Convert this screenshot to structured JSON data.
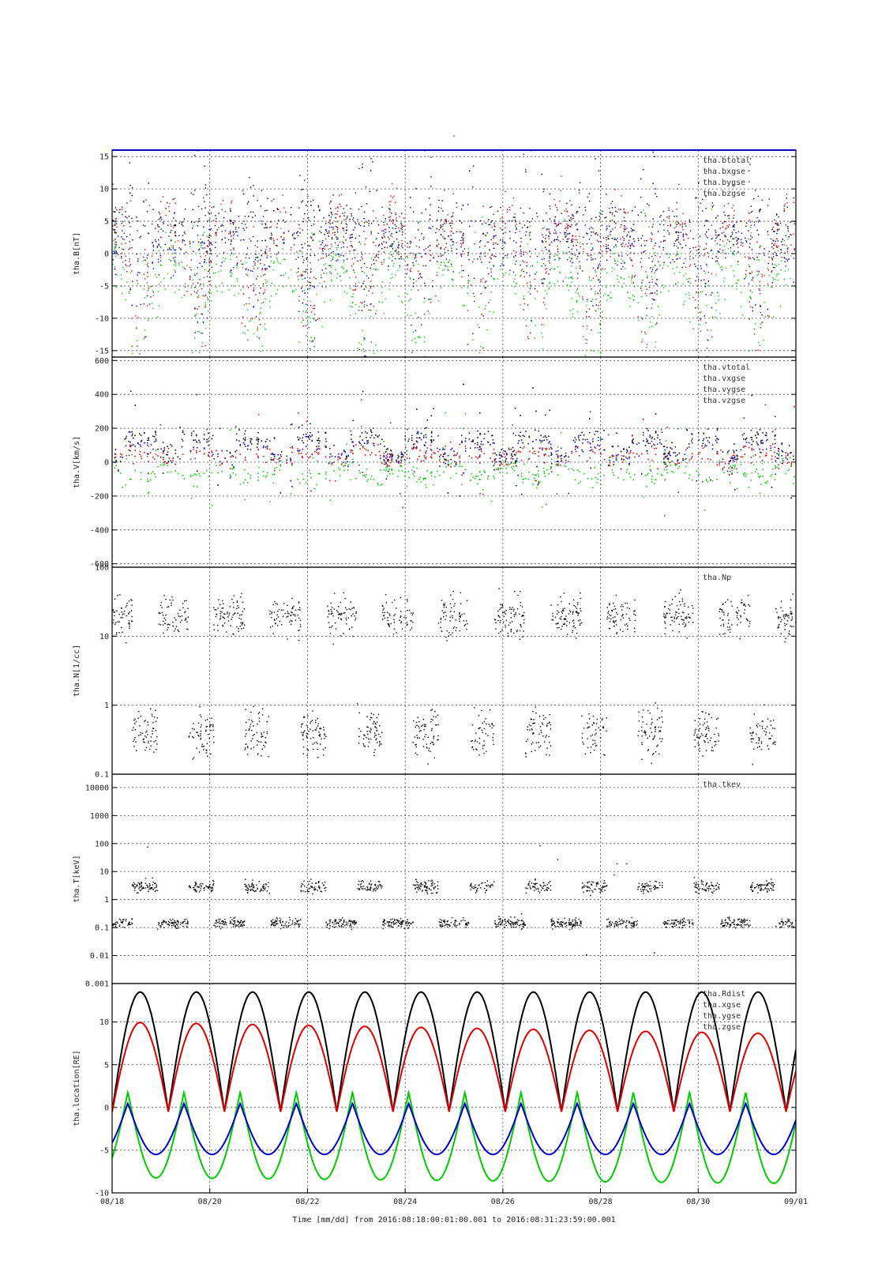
{
  "title": "-",
  "x_axis": {
    "ticks": [
      "08/18",
      "08/20",
      "08/22",
      "08/24",
      "08/26",
      "08/28",
      "08/30",
      "09/01"
    ],
    "title": "Time [mm/dd]  from 2016:08:18:00:01:00.001  to  2016:08:31:23:59:00.001"
  },
  "colors": {
    "black": "#000000",
    "red": "#dd0000",
    "green": "#00cc00",
    "blue": "#0000cc"
  },
  "chart_data": [
    {
      "type": "scatter",
      "ylabel": "tha.B[nT]",
      "scale": "linear",
      "ylim": [
        -16,
        16
      ],
      "yticks": [
        -15,
        -10,
        -5,
        0,
        5,
        10,
        15
      ],
      "ytick_labels": [
        "-15",
        "-10",
        "-5",
        "0",
        "5",
        "10",
        "15"
      ],
      "grid": true,
      "legend_position": "top-right",
      "series": [
        {
          "name": "tha.btotal",
          "color": "#000000"
        },
        {
          "name": "tha.bxgse",
          "color": "#dd0000"
        },
        {
          "name": "tha.bygse",
          "color": "#00cc00"
        },
        {
          "name": "tha.bzgse",
          "color": "#0000cc"
        }
      ]
    },
    {
      "type": "scatter",
      "ylabel": "tha.V[km/s]",
      "scale": "linear",
      "ylim": [
        -620,
        620
      ],
      "yticks": [
        -600,
        -400,
        -200,
        0,
        200,
        400,
        600
      ],
      "ytick_labels": [
        "-600",
        "-400",
        "-200",
        "0",
        "200",
        "400",
        "600"
      ],
      "grid": true,
      "legend_position": "top-right",
      "series": [
        {
          "name": "tha.vtotal",
          "color": "#000000"
        },
        {
          "name": "tha.vxgse",
          "color": "#dd0000"
        },
        {
          "name": "tha.vygse",
          "color": "#00cc00"
        },
        {
          "name": "tha.vzgse",
          "color": "#0000cc"
        }
      ]
    },
    {
      "type": "scatter",
      "ylabel": "tha.N[1/cc]",
      "scale": "log",
      "ylim": [
        0.1,
        100
      ],
      "yticks": [
        0.1,
        1,
        10,
        100
      ],
      "ytick_labels": [
        "0.1",
        "1",
        "10",
        "100"
      ],
      "grid": true,
      "legend_position": "top-right",
      "series": [
        {
          "name": "tha.Np",
          "color": "#000000"
        }
      ]
    },
    {
      "type": "scatter",
      "ylabel": "tha.T[keV]",
      "scale": "log",
      "ylim": [
        0.001,
        30000
      ],
      "yticks": [
        0.001,
        0.01,
        0.1,
        1,
        10,
        100,
        1000,
        10000
      ],
      "ytick_labels": [
        "0.001",
        "0.01",
        "0.1",
        "1",
        "10",
        "100",
        "1000",
        "10000"
      ],
      "grid": true,
      "legend_position": "top-right",
      "series": [
        {
          "name": "tha.tkev",
          "color": "#000000"
        }
      ]
    },
    {
      "type": "line",
      "ylabel": "tha.location[RE]",
      "scale": "linear",
      "ylim": [
        -10,
        14.5
      ],
      "yticks": [
        -10,
        -5,
        0,
        5,
        10
      ],
      "ytick_labels": [
        "-10",
        "-5",
        "0",
        "5",
        "10"
      ],
      "grid": true,
      "legend_position": "top-right",
      "series": [
        {
          "name": "tha.Rdist",
          "color": "#000000"
        },
        {
          "name": "tha.xgse",
          "color": "#dd0000"
        },
        {
          "name": "tha.ygse",
          "color": "#00cc00"
        },
        {
          "name": "tha.zgse",
          "color": "#0000cc"
        }
      ]
    }
  ]
}
